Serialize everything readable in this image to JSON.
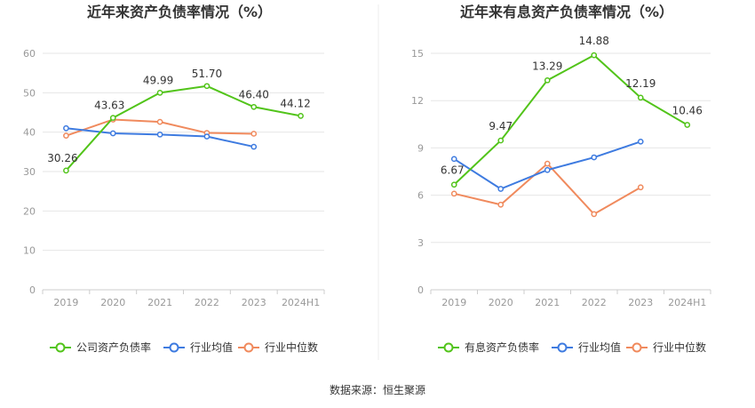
{
  "chart_data": [
    {
      "type": "line",
      "title": "近年来资产负债率情况（%）",
      "categories": [
        "2019",
        "2020",
        "2021",
        "2022",
        "2023",
        "2024H1"
      ],
      "ylim": [
        0,
        60
      ],
      "yticks": [
        "0",
        "10",
        "20",
        "30",
        "40",
        "50",
        "60"
      ],
      "grid": true,
      "legend_position": "bottom",
      "series": [
        {
          "name": "公司资产负债率",
          "color": "#52c41a",
          "values": [
            30.26,
            43.63,
            49.99,
            51.7,
            46.4,
            44.12
          ],
          "labels": [
            "30.26",
            "43.63",
            "49.99",
            "51.70",
            "46.40",
            "44.12"
          ]
        },
        {
          "name": "行业均值",
          "color": "#3e7be0",
          "values": [
            41.0,
            39.7,
            39.4,
            38.9,
            36.3,
            null
          ]
        },
        {
          "name": "行业中位数",
          "color": "#f08a5d",
          "values": [
            39.1,
            43.2,
            42.6,
            39.8,
            39.6,
            null
          ]
        }
      ]
    },
    {
      "type": "line",
      "title": "近年来有息资产负债率情况（%）",
      "categories": [
        "2019",
        "2020",
        "2021",
        "2022",
        "2023",
        "2024H1"
      ],
      "ylim": [
        0,
        15
      ],
      "yticks": [
        "0",
        "3",
        "6",
        "9",
        "12",
        "15"
      ],
      "grid": true,
      "legend_position": "bottom",
      "series": [
        {
          "name": "有息资产负债率",
          "color": "#52c41a",
          "values": [
            6.67,
            9.47,
            13.29,
            14.88,
            12.19,
            10.46
          ],
          "labels": [
            "6.67",
            "9.47",
            "13.29",
            "14.88",
            "12.19",
            "10.46"
          ]
        },
        {
          "name": "行业均值",
          "color": "#3e7be0",
          "values": [
            8.3,
            6.4,
            7.6,
            8.4,
            9.4,
            null
          ]
        },
        {
          "name": "行业中位数",
          "color": "#f08a5d",
          "values": [
            6.1,
            5.4,
            8.0,
            4.8,
            6.5,
            null
          ]
        }
      ]
    }
  ],
  "footer": {
    "source": "数据来源：恒生聚源"
  }
}
